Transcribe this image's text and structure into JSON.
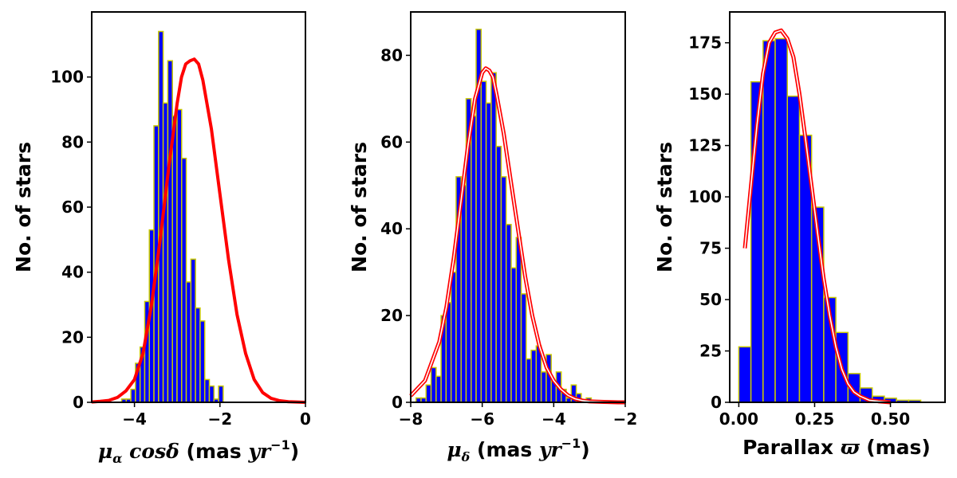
{
  "colors": {
    "bar_fill": "#0000ff",
    "bar_edge": "#c8c800",
    "fit_line": "#ff0000",
    "axes": "#000000"
  },
  "chart_data": [
    {
      "type": "bar",
      "title": "",
      "xlabel": "μα cosδ (mas yr−1)",
      "xlabel_parts": {
        "mu": "μ",
        "sub": "α",
        "mid": " cosδ",
        "tail_open": " (mas ",
        "yr": "yr",
        "exp": "−1",
        "close": ")"
      },
      "ylabel": "No. of stars",
      "xlim": [
        -5,
        0
      ],
      "ylim": [
        0,
        120
      ],
      "xticks": [
        -4,
        -2,
        0
      ],
      "xtick_labels": [
        "−4",
        "−2",
        "0"
      ],
      "yticks": [
        0,
        20,
        40,
        60,
        80,
        100
      ],
      "ytick_labels": [
        "0",
        "20",
        "40",
        "60",
        "80",
        "100"
      ],
      "bin_edges_start": -4.3,
      "bin_width": 0.108,
      "counts": [
        1,
        1,
        4,
        12,
        17,
        31,
        53,
        85,
        114,
        92,
        105,
        88,
        90,
        75,
        37,
        44,
        29,
        25,
        7,
        5,
        1,
        5
      ],
      "fit": {
        "style": "single",
        "width": 4,
        "x": [
          -5,
          -4.8,
          -4.6,
          -4.4,
          -4.2,
          -4.0,
          -3.8,
          -3.6,
          -3.4,
          -3.2,
          -3.0,
          -2.9,
          -2.8,
          -2.7,
          -2.6,
          -2.5,
          -2.4,
          -2.2,
          -2.0,
          -1.8,
          -1.6,
          -1.4,
          -1.2,
          -1.0,
          -0.8,
          -0.6,
          -0.4,
          -0.2,
          0
        ],
        "y": [
          0.1,
          0.3,
          0.6,
          1.5,
          3.5,
          7,
          15,
          30,
          50,
          72,
          92,
          100,
          104,
          105,
          105.5,
          104,
          99,
          84,
          64,
          44,
          27,
          15,
          7,
          3,
          1.2,
          0.5,
          0.2,
          0.1,
          0
        ]
      }
    },
    {
      "type": "bar",
      "title": "",
      "xlabel": "μδ (mas yr−1)",
      "xlabel_parts": {
        "mu": "μ",
        "sub": "δ",
        "mid": "",
        "tail_open": "  (mas ",
        "yr": "yr",
        "exp": "−1",
        "close": ")"
      },
      "ylabel": "No. of stars",
      "xlim": [
        -8,
        -2
      ],
      "ylim": [
        0,
        90
      ],
      "xticks": [
        -8,
        -6,
        -4,
        -2
      ],
      "xtick_labels": [
        "−8",
        "−6",
        "−4",
        "−2"
      ],
      "yticks": [
        0,
        20,
        40,
        60,
        80
      ],
      "ytick_labels": [
        "0",
        "20",
        "40",
        "60",
        "80"
      ],
      "bin_edges_start": -7.85,
      "bin_width": 0.14,
      "counts": [
        1,
        1,
        4,
        8,
        6,
        20,
        23,
        30,
        52,
        50,
        70,
        66,
        86,
        74,
        69,
        76,
        59,
        52,
        41,
        31,
        38,
        25,
        10,
        12,
        13,
        7,
        11,
        5,
        7,
        3,
        1,
        4,
        2,
        0,
        1
      ],
      "fit": {
        "style": "double",
        "width": 2,
        "x": [
          -8,
          -7.6,
          -7.2,
          -7.0,
          -6.8,
          -6.6,
          -6.4,
          -6.2,
          -6.0,
          -5.9,
          -5.8,
          -5.7,
          -5.6,
          -5.4,
          -5.2,
          -5.0,
          -4.8,
          -4.6,
          -4.4,
          -4.2,
          -4.0,
          -3.8,
          -3.6,
          -3.4,
          -3.2,
          -3.0,
          -2.6,
          -2.2,
          -2.0
        ],
        "y": [
          1.5,
          5,
          14,
          22,
          33,
          46,
          59,
          70,
          76,
          77,
          76.5,
          75,
          71,
          62,
          51,
          40,
          29,
          20,
          13,
          8,
          5,
          3,
          1.6,
          0.8,
          0.4,
          0.2,
          0.1,
          0,
          0
        ]
      }
    },
    {
      "type": "bar",
      "title": "",
      "xlabel": "Parallax ϖ (mas)",
      "xlabel_parts": {
        "pre": "Parallax ",
        "sym": "ϖ",
        "post": " (mas)"
      },
      "ylabel": "No. of stars",
      "xlim": [
        -0.03,
        0.68
      ],
      "ylim": [
        0,
        190
      ],
      "xticks": [
        0.0,
        0.25,
        0.5
      ],
      "xtick_labels": [
        "0.00",
        "0.25",
        "0.50"
      ],
      "yticks": [
        0,
        25,
        50,
        75,
        100,
        125,
        150,
        175
      ],
      "ytick_labels": [
        "0",
        "25",
        "50",
        "75",
        "100",
        "125",
        "150",
        "175"
      ],
      "bin_edges_start": 0.0,
      "bin_width": 0.04,
      "counts": [
        27,
        156,
        176,
        177,
        149,
        130,
        95,
        51,
        34,
        14,
        7,
        3,
        2,
        1,
        1
      ],
      "fit": {
        "style": "double",
        "width": 2,
        "x": [
          0.02,
          0.04,
          0.06,
          0.08,
          0.1,
          0.12,
          0.14,
          0.16,
          0.18,
          0.2,
          0.22,
          0.24,
          0.26,
          0.28,
          0.3,
          0.32,
          0.34,
          0.36,
          0.38,
          0.4,
          0.43,
          0.46,
          0.5
        ],
        "y": [
          75,
          105,
          135,
          160,
          175,
          180,
          181,
          177,
          168,
          150,
          128,
          105,
          82,
          60,
          42,
          27,
          16,
          9,
          5,
          3,
          1,
          0.5,
          0
        ]
      }
    }
  ]
}
